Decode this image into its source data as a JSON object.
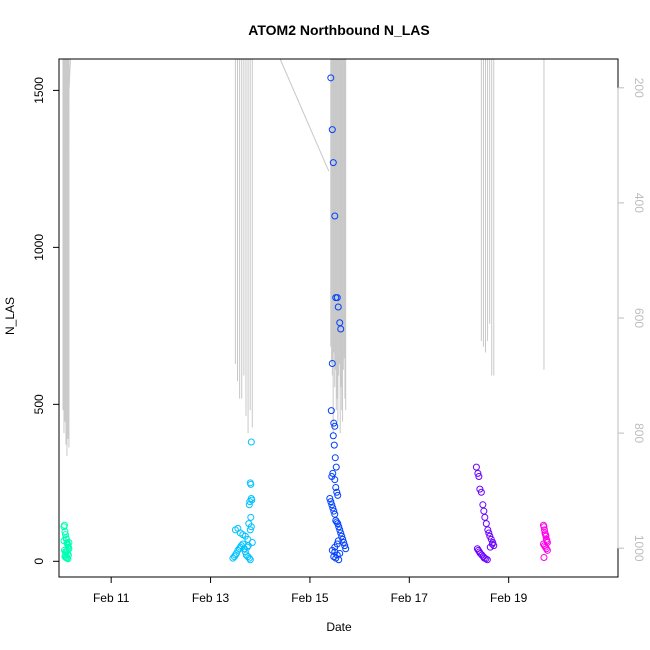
{
  "chart_data": {
    "type": "scatter",
    "title": "ATOM2 Northbound N_LAS",
    "xlabel": "Date",
    "ylabel": "N_LAS",
    "x_ticks": [
      {
        "value": 11,
        "label": "Feb 11"
      },
      {
        "value": 13,
        "label": "Feb 13"
      },
      {
        "value": 15,
        "label": "Feb 15"
      },
      {
        "value": 17,
        "label": "Feb 17"
      },
      {
        "value": 19,
        "label": "Feb 19"
      }
    ],
    "xlim": [
      9.95,
      21.2
    ],
    "ylim": [
      -50,
      1600
    ],
    "y_ticks": [
      {
        "value": 0,
        "label": "0"
      },
      {
        "value": 500,
        "label": "500"
      },
      {
        "value": 1000,
        "label": "1000"
      },
      {
        "value": 1500,
        "label": "1500"
      }
    ],
    "y2_lim": [
      1050,
      150
    ],
    "y2_ticks": [
      {
        "value": 200,
        "label": "200"
      },
      {
        "value": 400,
        "label": "400"
      },
      {
        "value": 600,
        "label": "600"
      },
      {
        "value": 800,
        "label": "800"
      },
      {
        "value": 1000,
        "label": "1000"
      }
    ],
    "y2_color": "#bdbdbd",
    "line_color": "#c8c8c8",
    "line_segments": [
      {
        "x": [
          10.1,
          10.18
        ],
        "y2": [
          300,
          150
        ]
      },
      {
        "x": [
          14.4,
          15.38
        ],
        "y2": [
          150,
          345
        ]
      }
    ],
    "profile_groups": [
      {
        "x_start": 10.03,
        "x_end": 10.15,
        "n": 7,
        "bottom": [
          760,
          800,
          780,
          820,
          840,
          810,
          825
        ]
      },
      {
        "x_start": 13.5,
        "x_end": 13.84,
        "n": 9,
        "bottom": [
          680,
          710,
          740,
          740,
          700,
          770,
          800,
          760,
          790
        ]
      },
      {
        "x_start": 15.42,
        "x_end": 15.72,
        "n": 20,
        "bottom": [
          650,
          680,
          700,
          800,
          660,
          720,
          690,
          760,
          740,
          780,
          700,
          680,
          800,
          720,
          760,
          780,
          690,
          670,
          740,
          760
        ]
      },
      {
        "x_start": 18.45,
        "x_end": 18.7,
        "n": 7,
        "bottom": [
          640,
          650,
          660,
          640,
          610,
          700,
          700
        ]
      },
      {
        "x_start": 19.71,
        "x_end": 19.71,
        "n": 1,
        "bottom": [
          690
        ]
      }
    ],
    "series": [
      {
        "color": "#00ffb3",
        "x": [
          10.05,
          10.06,
          10.07,
          10.08,
          10.09,
          10.1,
          10.11,
          10.12,
          10.13,
          10.14,
          10.15,
          10.06,
          10.08,
          10.1,
          10.12,
          10.14,
          10.07,
          10.09,
          10.11,
          10.13,
          10.05,
          10.15,
          10.08,
          10.12
        ],
        "y": [
          110,
          115,
          95,
          85,
          75,
          70,
          60,
          55,
          50,
          45,
          40,
          35,
          30,
          30,
          25,
          20,
          15,
          12,
          10,
          8,
          65,
          60,
          20,
          35
        ]
      },
      {
        "color": "#00c2ff",
        "x": [
          13.45,
          13.48,
          13.5,
          13.52,
          13.55,
          13.58,
          13.6,
          13.62,
          13.65,
          13.68,
          13.7,
          13.72,
          13.75,
          13.78,
          13.8,
          13.82,
          13.8,
          13.81,
          13.82,
          13.83,
          13.79,
          13.78,
          13.77,
          13.81,
          13.82,
          13.8,
          13.5,
          13.55,
          13.6,
          13.65,
          13.7,
          13.75,
          13.84,
          13.76,
          13.74
        ],
        "y": [
          10,
          15,
          20,
          25,
          35,
          40,
          45,
          50,
          55,
          40,
          30,
          20,
          15,
          10,
          5,
          380,
          250,
          245,
          200,
          195,
          190,
          180,
          120,
          140,
          110,
          100,
          100,
          105,
          90,
          85,
          80,
          70,
          60,
          50,
          45
        ]
      },
      {
        "color": "#0040ff",
        "x": [
          15.42,
          15.45,
          15.47,
          15.5,
          15.52,
          15.55,
          15.57,
          15.6,
          15.62,
          15.45,
          15.43,
          15.48,
          15.5,
          15.47,
          15.49,
          15.51,
          15.53,
          15.46,
          15.44,
          15.5,
          15.52,
          15.54,
          15.56,
          15.4,
          15.42,
          15.44,
          15.46,
          15.48,
          15.5,
          15.52,
          15.54,
          15.56,
          15.58,
          15.6,
          15.62,
          15.64,
          15.66,
          15.68,
          15.7,
          15.72,
          15.5,
          15.55,
          15.48,
          15.52,
          15.58,
          15.6,
          15.45,
          15.5,
          15.55,
          15.57
        ],
        "y": [
          1540,
          1375,
          1270,
          1100,
          840,
          840,
          810,
          760,
          740,
          630,
          480,
          440,
          430,
          400,
          370,
          330,
          300,
          280,
          270,
          260,
          235,
          220,
          210,
          200,
          190,
          180,
          170,
          160,
          150,
          130,
          125,
          120,
          110,
          100,
          90,
          80,
          70,
          60,
          50,
          40,
          30,
          20,
          15,
          10,
          5,
          25,
          35,
          45,
          55,
          65
        ]
      },
      {
        "color": "#6a00ff",
        "x": [
          18.35,
          18.38,
          18.4,
          18.42,
          18.45,
          18.48,
          18.5,
          18.52,
          18.55,
          18.58,
          18.6,
          18.62,
          18.65,
          18.68,
          18.7,
          18.37,
          18.39,
          18.41,
          18.43,
          18.46,
          18.49,
          18.51,
          18.54,
          18.57,
          18.63,
          18.67
        ],
        "y": [
          300,
          280,
          270,
          230,
          220,
          180,
          160,
          140,
          120,
          100,
          90,
          80,
          70,
          60,
          50,
          40,
          35,
          30,
          25,
          20,
          15,
          10,
          8,
          5,
          45,
          55
        ]
      },
      {
        "color": "#ff00ea",
        "x": [
          19.7,
          19.71,
          19.72,
          19.73,
          19.74,
          19.75,
          19.76,
          19.77,
          19.78,
          19.7,
          19.72,
          19.74,
          19.76,
          19.78,
          19.71
        ],
        "y": [
          115,
          110,
          100,
          90,
          85,
          80,
          70,
          65,
          60,
          55,
          50,
          45,
          40,
          35,
          12
        ]
      }
    ]
  }
}
